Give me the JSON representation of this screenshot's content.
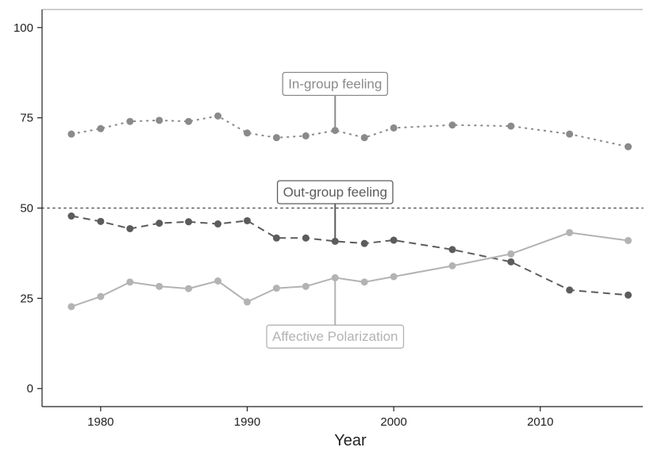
{
  "chart_data": {
    "type": "line",
    "xlabel": "Year",
    "ylabel": "",
    "xlim": [
      1976,
      2017
    ],
    "ylim": [
      -5,
      105
    ],
    "x_ticks": [
      1980,
      1990,
      2000,
      2010
    ],
    "y_ticks": [
      0,
      25,
      50,
      75,
      100
    ],
    "grid": false,
    "reference_line": {
      "y": 50,
      "style": "dotted"
    },
    "series": [
      {
        "label": "In-group feeling",
        "color": "#8a8a8a",
        "line_style": "dotted",
        "x": [
          1978,
          1980,
          1982,
          1984,
          1986,
          1988,
          1990,
          1992,
          1994,
          1996,
          1998,
          2000,
          2004,
          2008,
          2012,
          2016
        ],
        "y": [
          70.5,
          72,
          74,
          74.3,
          74,
          75.5,
          70.8,
          69.5,
          70,
          71.5,
          69.5,
          72.2,
          73,
          72.7,
          70.5,
          67
        ]
      },
      {
        "label": "Out-group feeling",
        "color": "#5c5c5c",
        "line_style": "dashed",
        "x": [
          1978,
          1980,
          1982,
          1984,
          1986,
          1988,
          1990,
          1992,
          1994,
          1996,
          1998,
          2000,
          2004,
          2008,
          2012,
          2016
        ],
        "y": [
          47.8,
          46.3,
          44.3,
          45.8,
          46.2,
          45.6,
          46.5,
          41.7,
          41.7,
          40.8,
          40.2,
          41.1,
          38.5,
          35.1,
          27.3,
          25.9
        ]
      },
      {
        "label": "Affective Polarization",
        "color": "#b3b3b3",
        "line_style": "solid",
        "x": [
          1978,
          1980,
          1982,
          1984,
          1986,
          1988,
          1990,
          1992,
          1994,
          1996,
          1998,
          2000,
          2004,
          2008,
          2012,
          2016
        ],
        "y": [
          22.7,
          25.5,
          29.5,
          28.3,
          27.7,
          29.8,
          24,
          27.8,
          28.3,
          30.7,
          29.5,
          31,
          34,
          37.3,
          43.2,
          41
        ]
      }
    ],
    "annotations": [
      {
        "text": "In-group feeling",
        "series": 0,
        "x": 1996,
        "anchor_y": 71.5,
        "label_y": 84.5
      },
      {
        "text": "Out-group feeling",
        "series": 1,
        "x": 1996,
        "anchor_y": 40.8,
        "label_y": 54.5
      },
      {
        "text": "Affective Polarization",
        "series": 2,
        "x": 1996,
        "anchor_y": 30.7,
        "label_y": 14.5
      }
    ]
  }
}
